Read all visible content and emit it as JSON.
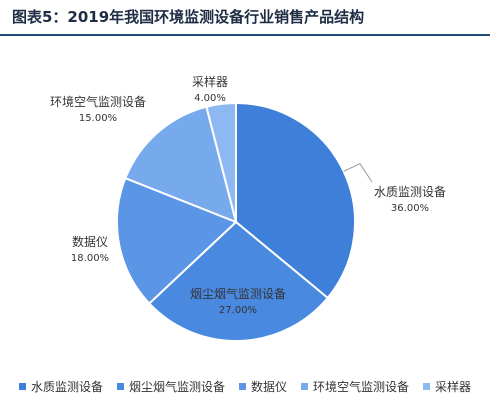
{
  "chart_data": {
    "type": "pie",
    "title": "图表5：2019年我国环境监测设备行业销售产品结构",
    "series": [
      {
        "name": "水质监测设备",
        "value": 36.0,
        "label": "36.00%",
        "color": "#3D7FD9"
      },
      {
        "name": "烟尘烟气监测设备",
        "value": 27.0,
        "label": "27.00%",
        "color": "#4A89E0"
      },
      {
        "name": "数据仪",
        "value": 18.0,
        "label": "18.00%",
        "color": "#5B95E6"
      },
      {
        "name": "环境空气监测设备",
        "value": 15.0,
        "label": "15.00%",
        "color": "#77A9ED"
      },
      {
        "name": "采样器",
        "value": 4.0,
        "label": "4.00%",
        "color": "#8DB8F2"
      }
    ],
    "legend_position": "bottom"
  }
}
